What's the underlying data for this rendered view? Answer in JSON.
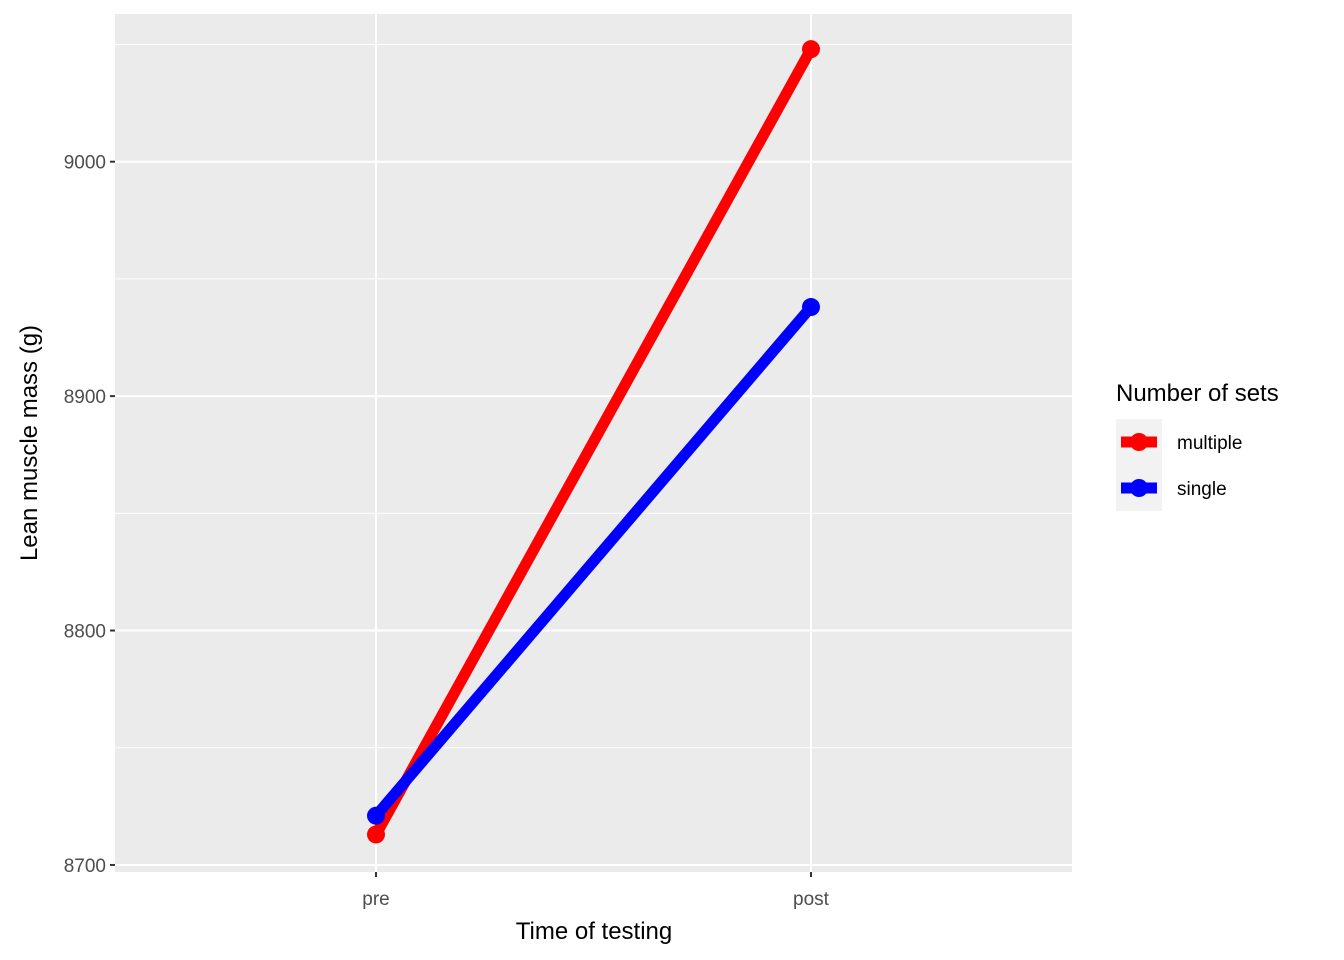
{
  "chart_data": {
    "type": "line",
    "xlabel": "Time of testing",
    "ylabel": "Lean muscle mass (g)",
    "categories": [
      "pre",
      "post"
    ],
    "series": [
      {
        "name": "multiple",
        "color": "#ff0000",
        "values": [
          8713,
          9048
        ]
      },
      {
        "name": "single",
        "color": "#0000ff",
        "values": [
          8721,
          8938
        ]
      }
    ],
    "ylim": [
      8697,
      9063
    ],
    "yticks": [
      8700,
      8800,
      8900,
      9000
    ],
    "ytick_labels": [
      "8700",
      "8800",
      "8900",
      "9000"
    ],
    "grid": true,
    "legend": {
      "title": "Number of sets",
      "position": "right"
    }
  }
}
